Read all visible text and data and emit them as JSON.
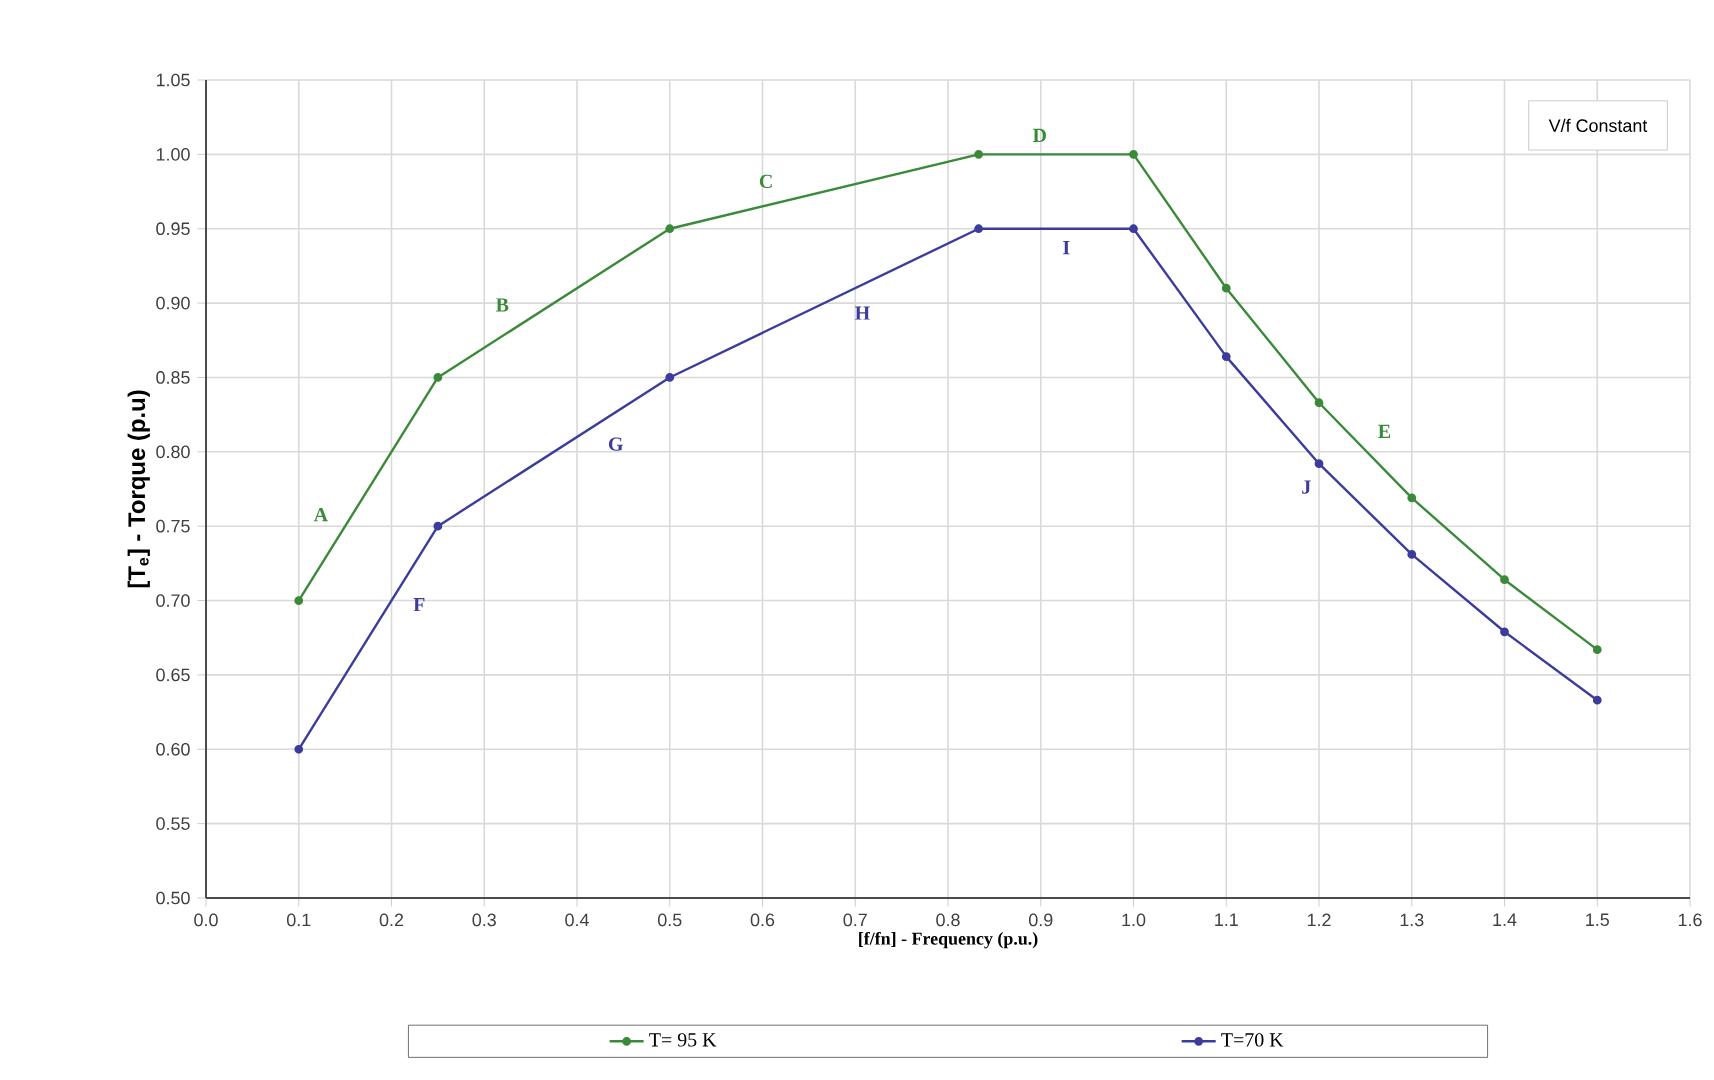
{
  "chart_data": {
    "type": "line",
    "xlabel": "[f/fn] -  Frequency (p.u.)",
    "ylabel": "[T$_{e}$] - Torque (p.u)",
    "x": [
      0.1,
      0.25,
      0.5,
      0.833,
      1.0,
      1.1,
      1.2,
      1.3,
      1.4,
      1.5
    ],
    "series": [
      {
        "name": "T= 95 K",
        "color": "#3a8a3a",
        "values": [
          0.7,
          0.85,
          0.95,
          1.0,
          1.0,
          0.91,
          0.833,
          0.769,
          0.714,
          0.667
        ]
      },
      {
        "name": "T=70 K",
        "color": "#3c3c9c",
        "values": [
          0.6,
          0.75,
          0.85,
          0.95,
          0.95,
          0.864,
          0.792,
          0.731,
          0.679,
          0.633
        ]
      }
    ],
    "xlim": [
      0.0,
      1.6
    ],
    "ylim": [
      0.5,
      1.05
    ],
    "xticks": [
      {
        "value": 0.0,
        "label": "0.0"
      },
      {
        "value": 0.1,
        "label": "0.1"
      },
      {
        "value": 0.2,
        "label": "0.2"
      },
      {
        "value": 0.3,
        "label": "0.3"
      },
      {
        "value": 0.4,
        "label": "0.4"
      },
      {
        "value": 0.5,
        "label": "0.5"
      },
      {
        "value": 0.6,
        "label": "0.6"
      },
      {
        "value": 0.7,
        "label": "0.7"
      },
      {
        "value": 0.8,
        "label": "0.8"
      },
      {
        "value": 0.9,
        "label": "0.9"
      },
      {
        "value": 1.0,
        "label": "1.0"
      },
      {
        "value": 1.1,
        "label": "1.1"
      },
      {
        "value": 1.2,
        "label": "1.2"
      },
      {
        "value": 1.3,
        "label": "1.3"
      },
      {
        "value": 1.4,
        "label": "1.4"
      },
      {
        "value": 1.5,
        "label": "1.5"
      },
      {
        "value": 1.6,
        "label": "1.6"
      }
    ],
    "yticks": [
      {
        "value": 0.5,
        "label": "0.50"
      },
      {
        "value": 0.55,
        "label": "0.55"
      },
      {
        "value": 0.6,
        "label": "0.60"
      },
      {
        "value": 0.65,
        "label": "0.65"
      },
      {
        "value": 0.7,
        "label": "0.70"
      },
      {
        "value": 0.75,
        "label": "0.75"
      },
      {
        "value": 0.8,
        "label": "0.80"
      },
      {
        "value": 0.85,
        "label": "0.85"
      },
      {
        "value": 0.9,
        "label": "0.90"
      },
      {
        "value": 0.95,
        "label": "0.95"
      },
      {
        "value": 1.0,
        "label": "1.00"
      },
      {
        "value": 1.05,
        "label": "1.05"
      }
    ],
    "annotations": [
      {
        "text": "A",
        "x": 0.145,
        "y": 0.745
      },
      {
        "text": "B",
        "x": 0.34,
        "y": 0.886
      },
      {
        "text": "C",
        "x": 0.625,
        "y": 0.969
      },
      {
        "text": "D",
        "x": 0.92,
        "y": 1.0
      },
      {
        "text": "E",
        "x": 1.25,
        "y": 0.801
      },
      {
        "text": "F",
        "x": 0.21,
        "y": 0.71
      },
      {
        "text": "G",
        "x": 0.42,
        "y": 0.818
      },
      {
        "text": "H",
        "x": 0.686,
        "y": 0.906
      },
      {
        "text": "I",
        "x": 0.91,
        "y": 0.95
      },
      {
        "text": "J",
        "x": 1.205,
        "y": 0.789
      },
      "V/f Constant"
    ],
    "grid": true,
    "legend": "bottom",
    "marker": "circle",
    "line_style": "solid"
  }
}
